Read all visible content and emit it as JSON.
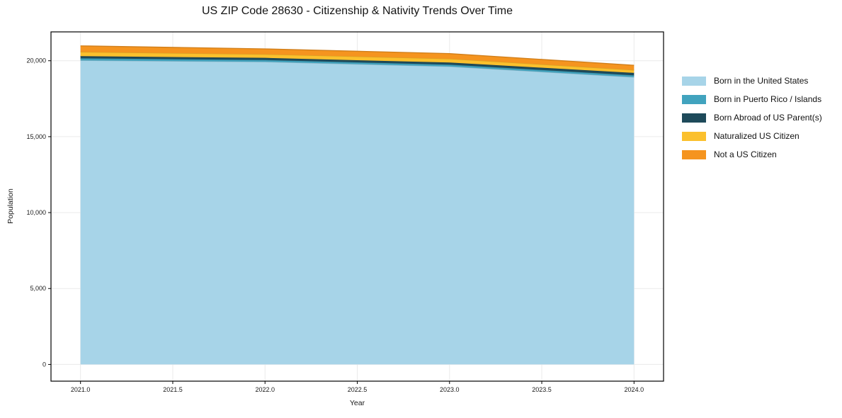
{
  "figure": {
    "background": "#ffffff",
    "axis_color": "#000000",
    "grid_color": "#eaeaea",
    "text_color": "#1a1a1a"
  },
  "chart_data": {
    "type": "area",
    "stacked": true,
    "title": "US ZIP Code 28630 - Citizenship & Nativity Trends Over Time",
    "xlabel": "Year",
    "ylabel": "Population",
    "x": [
      2021,
      2022,
      2023,
      2024
    ],
    "series": [
      {
        "name": "Born in the United States",
        "color": "#A7D4E8",
        "values": [
          20020,
          19930,
          19620,
          18920
        ]
      },
      {
        "name": "Born in Puerto Rico / Islands",
        "color": "#41A3BE",
        "values": [
          140,
          120,
          120,
          120
        ]
      },
      {
        "name": "Born Abroad of US Parent(s)",
        "color": "#1E4A5A",
        "values": [
          140,
          140,
          140,
          160
        ]
      },
      {
        "name": "Naturalized US Citizen",
        "color": "#FBC02D",
        "values": [
          280,
          235,
          250,
          190
        ]
      },
      {
        "name": "Not a US Citizen",
        "color": "#F5941F",
        "values": [
          400,
          355,
          340,
          310
        ]
      }
    ],
    "stack_totals": [
      20980,
      20780,
      20470,
      19700
    ],
    "xlim": [
      2020.84,
      2024.16
    ],
    "ylim": [
      -1100,
      21900
    ],
    "x_ticks": {
      "values": [
        2021.0,
        2021.5,
        2022.0,
        2022.5,
        2023.0,
        2023.5,
        2024.0
      ],
      "labels": [
        "2021.0",
        "2021.5",
        "2022.0",
        "2022.5",
        "2023.0",
        "2023.5",
        "2024.0"
      ]
    },
    "y_ticks": {
      "values": [
        0,
        5000,
        10000,
        15000,
        20000
      ],
      "labels": [
        "0",
        "5,000",
        "10,000",
        "15,000",
        "20,000"
      ]
    },
    "grid": true,
    "legend_position": "right-outside"
  }
}
